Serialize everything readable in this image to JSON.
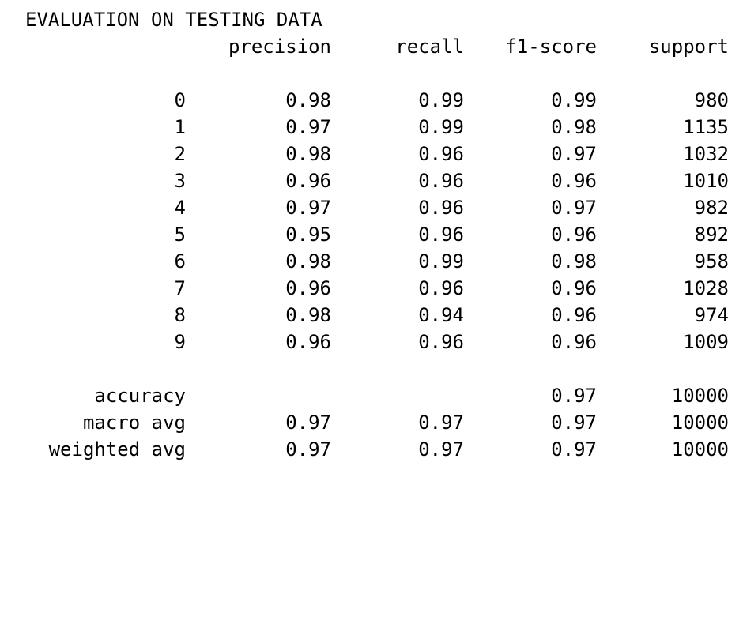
{
  "title": "EVALUATION ON TESTING DATA",
  "headers": {
    "precision": "precision",
    "recall": "recall",
    "f1": "f1-score",
    "support": "support"
  },
  "rows": [
    {
      "label": "0",
      "precision": "0.98",
      "recall": "0.99",
      "f1": "0.99",
      "support": "980"
    },
    {
      "label": "1",
      "precision": "0.97",
      "recall": "0.99",
      "f1": "0.98",
      "support": "1135"
    },
    {
      "label": "2",
      "precision": "0.98",
      "recall": "0.96",
      "f1": "0.97",
      "support": "1032"
    },
    {
      "label": "3",
      "precision": "0.96",
      "recall": "0.96",
      "f1": "0.96",
      "support": "1010"
    },
    {
      "label": "4",
      "precision": "0.97",
      "recall": "0.96",
      "f1": "0.97",
      "support": "982"
    },
    {
      "label": "5",
      "precision": "0.95",
      "recall": "0.96",
      "f1": "0.96",
      "support": "892"
    },
    {
      "label": "6",
      "precision": "0.98",
      "recall": "0.99",
      "f1": "0.98",
      "support": "958"
    },
    {
      "label": "7",
      "precision": "0.96",
      "recall": "0.96",
      "f1": "0.96",
      "support": "1028"
    },
    {
      "label": "8",
      "precision": "0.98",
      "recall": "0.94",
      "f1": "0.96",
      "support": "974"
    },
    {
      "label": "9",
      "precision": "0.96",
      "recall": "0.96",
      "f1": "0.96",
      "support": "1009"
    }
  ],
  "summary": [
    {
      "label": "accuracy",
      "precision": "",
      "recall": "",
      "f1": "0.97",
      "support": "10000"
    },
    {
      "label": "macro avg",
      "precision": "0.97",
      "recall": "0.97",
      "f1": "0.97",
      "support": "10000"
    },
    {
      "label": "weighted avg",
      "precision": "0.97",
      "recall": "0.97",
      "f1": "0.97",
      "support": "10000"
    }
  ]
}
